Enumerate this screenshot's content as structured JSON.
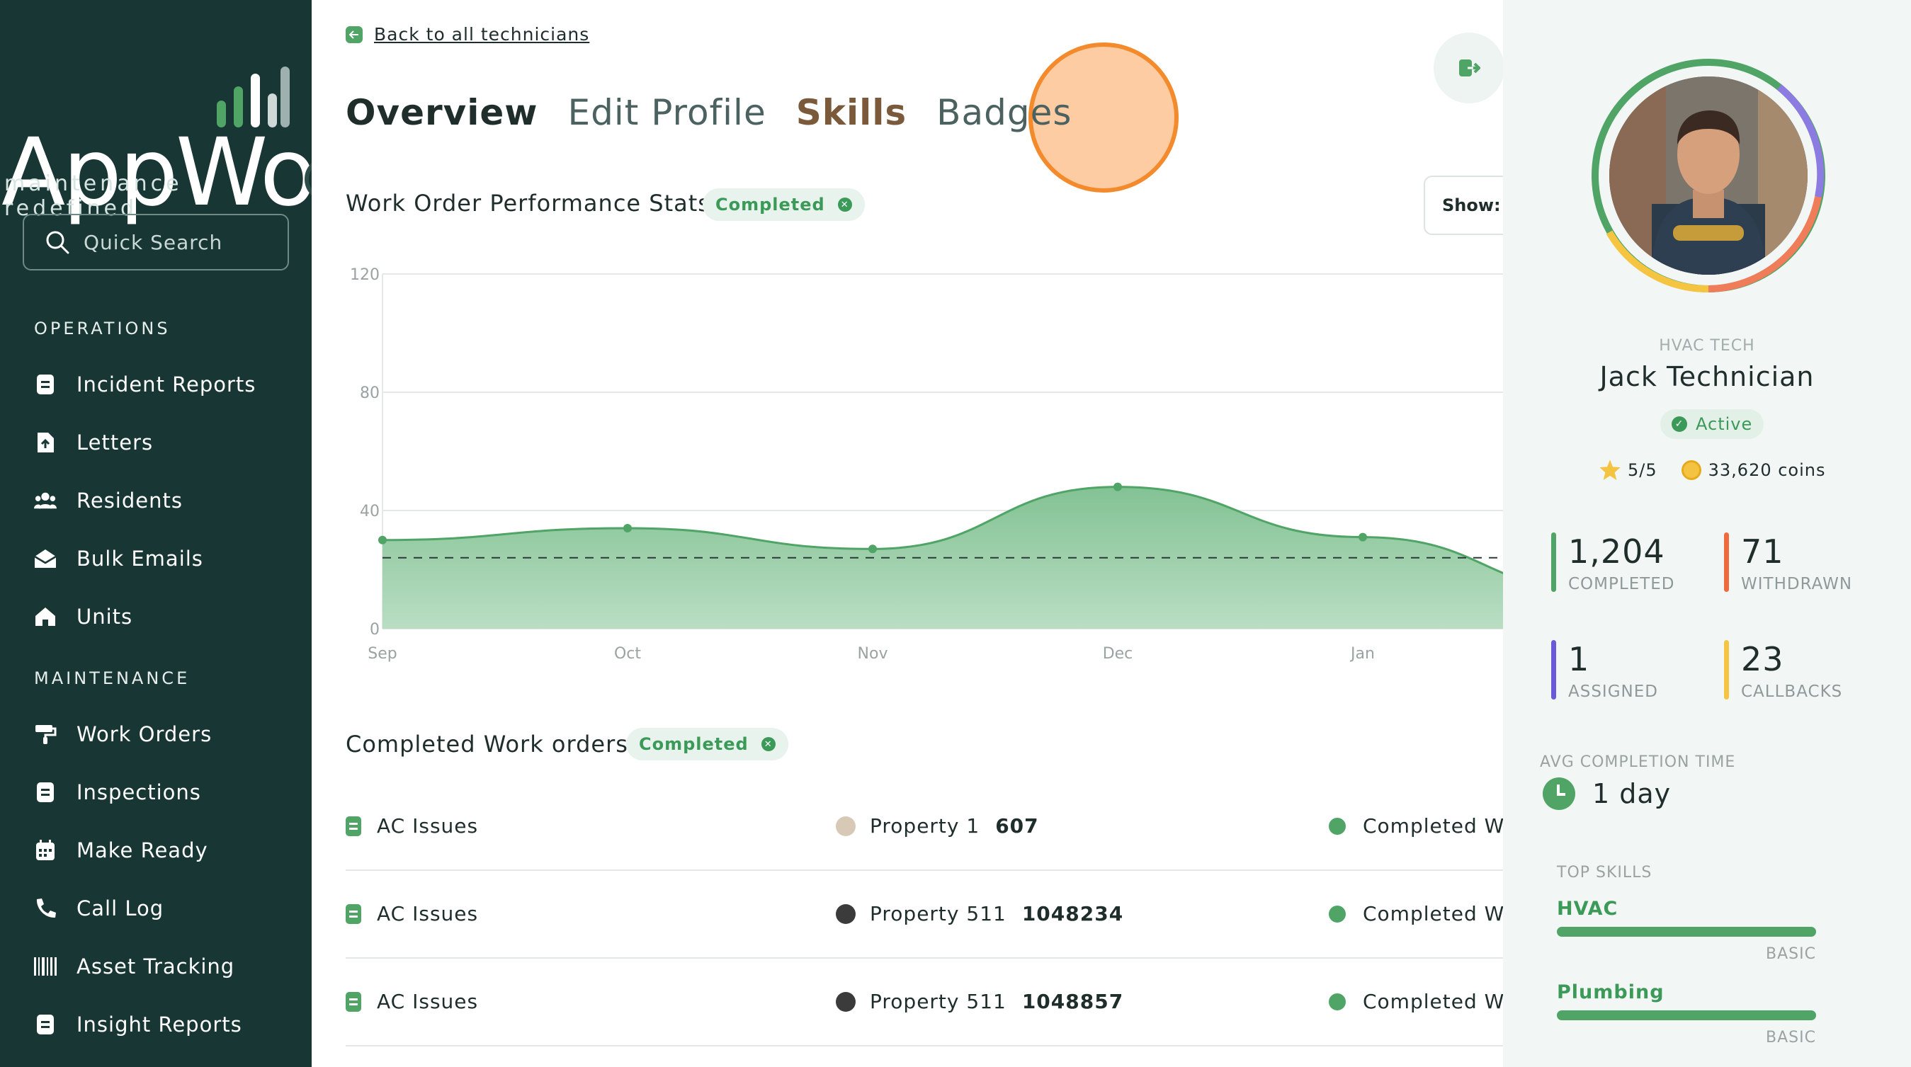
{
  "brand": {
    "name": "AppWork",
    "tagline": "maintenance redefined"
  },
  "sidebar": {
    "search_placeholder": "Quick Search",
    "sections": [
      {
        "title": "OPERATIONS"
      },
      {
        "title": "MAINTENANCE"
      }
    ],
    "operations": [
      {
        "label": "Incident Reports",
        "icon": "document-icon"
      },
      {
        "label": "Letters",
        "icon": "file-upload-icon"
      },
      {
        "label": "Residents",
        "icon": "people-icon"
      },
      {
        "label": "Bulk Emails",
        "icon": "envelope-icon"
      },
      {
        "label": "Units",
        "icon": "home-icon"
      }
    ],
    "maintenance": [
      {
        "label": "Work Orders",
        "icon": "paint-roller-icon"
      },
      {
        "label": "Inspections",
        "icon": "clipboard-icon"
      },
      {
        "label": "Make Ready",
        "icon": "calendar-icon"
      },
      {
        "label": "Call Log",
        "icon": "phone-icon"
      },
      {
        "label": "Asset Tracking",
        "icon": "barcode-icon"
      },
      {
        "label": "Insight Reports",
        "icon": "report-icon"
      }
    ]
  },
  "main": {
    "back_link": "Back to all technicians",
    "tabs": [
      {
        "label": "Overview",
        "active": true
      },
      {
        "label": "Edit Profile",
        "active": false
      },
      {
        "label": "Skills",
        "active": false
      },
      {
        "label": "Badges",
        "active": false
      }
    ],
    "stats_title": "Work Order Performance Stats",
    "stats_filter": "Completed",
    "show_label": "Show:",
    "orders_title": "Completed Work orders",
    "orders_filter": "Completed",
    "orders": [
      {
        "type": "AC Issues",
        "property": "Property 1",
        "unit": "607",
        "status": "Completed Wi"
      },
      {
        "type": "AC Issues",
        "property": "Property 511",
        "unit": "1048234",
        "status": "Completed Wi"
      },
      {
        "type": "AC Issues",
        "property": "Property 511",
        "unit": "1048857",
        "status": "Completed Wi"
      }
    ]
  },
  "chart_data": {
    "type": "area",
    "categories": [
      "Sep",
      "Oct",
      "Nov",
      "Dec",
      "Jan"
    ],
    "series": [
      {
        "values": [
          30,
          34,
          27,
          48,
          31
        ]
      }
    ],
    "reference_line": 24,
    "yticks": [
      "0",
      "40",
      "80",
      "120"
    ],
    "ylim": [
      0,
      120
    ],
    "grid": true,
    "color": "#4fa466"
  },
  "profile": {
    "role": "HVAC TECH",
    "name": "Jack Technician",
    "status": "Active",
    "rating": "5/5",
    "coins": "33,620 coins",
    "stats": [
      {
        "value": "1,204",
        "label": "COMPLETED",
        "color": "#4fa466"
      },
      {
        "value": "71",
        "label": "WITHDRAWN",
        "color": "#ef6a3c"
      },
      {
        "value": "1",
        "label": "ASSIGNED",
        "color": "#6a5ad8"
      },
      {
        "value": "23",
        "label": "CALLBACKS",
        "color": "#f5c542"
      }
    ],
    "avg_completion_title": "AVG COMPLETION TIME",
    "avg_completion_value": "1 day",
    "top_skills_title": "TOP SKILLS",
    "skills": [
      {
        "name": "HVAC",
        "level": "BASIC"
      },
      {
        "name": "Plumbing",
        "level": "BASIC"
      }
    ]
  }
}
